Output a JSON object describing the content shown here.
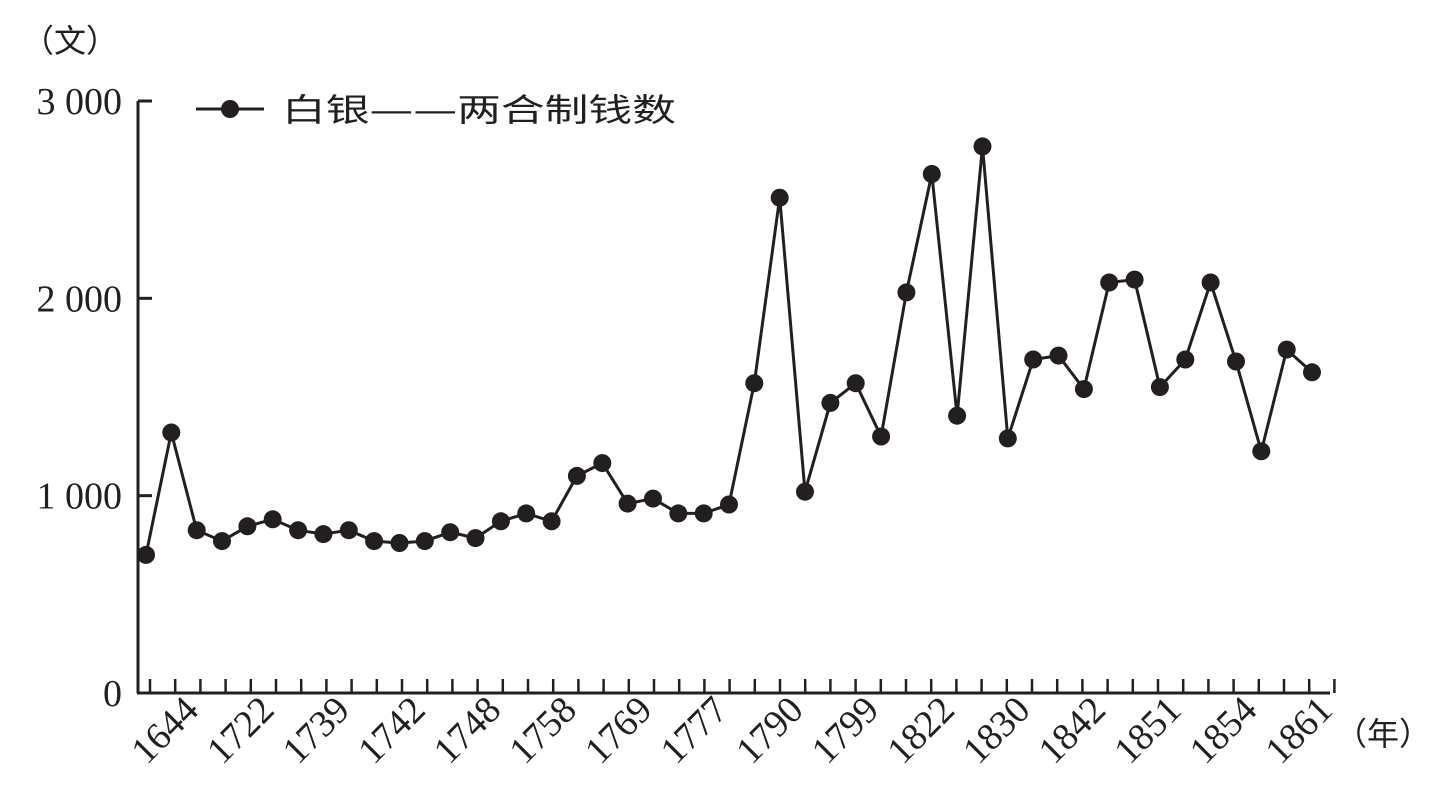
{
  "chart_data": {
    "type": "line",
    "y_unit": "（文）",
    "x_unit": "（年）",
    "legend_label": "白银——两合制钱数",
    "legend_position": "top-left",
    "ylim": [
      0,
      3000
    ],
    "y_ticks": [
      "0",
      "1 000",
      "2 000",
      "3 000"
    ],
    "x_tick_labels": [
      "1644",
      "1722",
      "1739",
      "1742",
      "1748",
      "1758",
      "1769",
      "1777",
      "1790",
      "1799",
      "1822",
      "1830",
      "1842",
      "1851",
      "1854",
      "1861"
    ],
    "series": [
      {
        "name": "白银——两合制钱数",
        "values": [
          700,
          1320,
          825,
          770,
          845,
          880,
          825,
          805,
          825,
          770,
          760,
          770,
          815,
          785,
          870,
          910,
          870,
          1100,
          1165,
          960,
          985,
          910,
          910,
          955,
          1570,
          2510,
          1020,
          1470,
          1570,
          1300,
          2030,
          2630,
          1405,
          2770,
          1290,
          1690,
          1710,
          1540,
          2080,
          2095,
          1550,
          1690,
          2080,
          1680,
          1225,
          1740,
          1625
        ]
      }
    ],
    "grid": false
  }
}
